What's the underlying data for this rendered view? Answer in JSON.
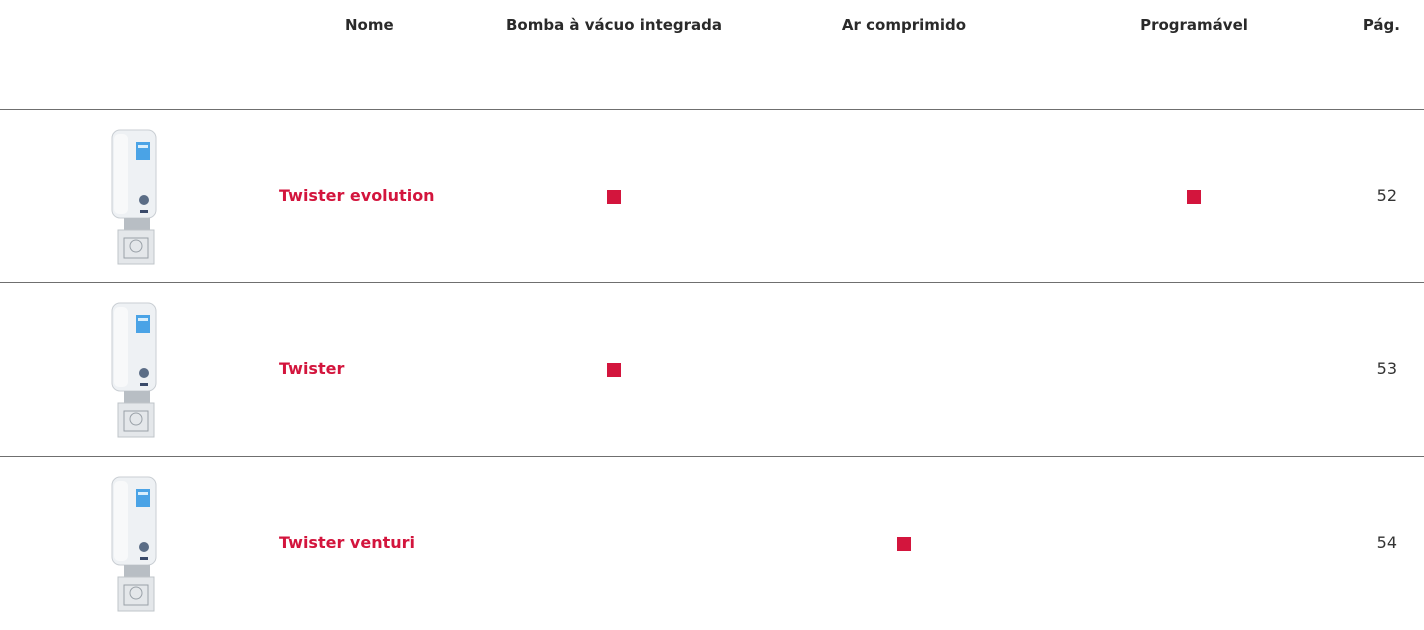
{
  "table": {
    "columns": [
      "Nome",
      "Bomba à vácuo integrada",
      "Ar comprimido",
      "Programável",
      "Pág."
    ],
    "rows": [
      {
        "name": "Twister evolution",
        "features": [
          true,
          false,
          true
        ],
        "page": 52
      },
      {
        "name": "Twister",
        "features": [
          true,
          false,
          false
        ],
        "page": 53
      },
      {
        "name": "Twister venturi",
        "features": [
          false,
          true,
          false
        ],
        "page": 54
      }
    ]
  }
}
